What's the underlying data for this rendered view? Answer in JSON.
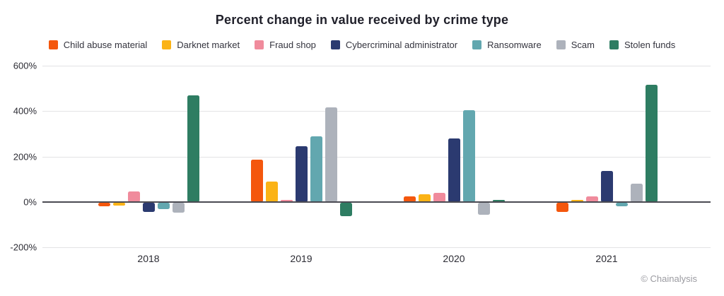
{
  "footer": "© Chainalysis",
  "chart_data": {
    "type": "bar",
    "title": "Percent change in value received by crime type",
    "categories": [
      "2018",
      "2019",
      "2020",
      "2021"
    ],
    "series": [
      {
        "name": "Child abuse material",
        "color": "#F4570D",
        "values": [
          -15,
          185,
          25,
          -40
        ]
      },
      {
        "name": "Darknet market",
        "color": "#FBB316",
        "values": [
          -12,
          88,
          35,
          10
        ]
      },
      {
        "name": "Fraud shop",
        "color": "#F08B9C",
        "values": [
          45,
          8,
          40,
          25
        ]
      },
      {
        "name": "Cybercriminal administrator",
        "color": "#2B3A70",
        "values": [
          -40,
          245,
          280,
          135
        ]
      },
      {
        "name": "Ransomware",
        "color": "#62A7AF",
        "values": [
          -30,
          290,
          405,
          -15
        ]
      },
      {
        "name": "Scam",
        "color": "#ADB2BB",
        "values": [
          -45,
          415,
          -55,
          80
        ]
      },
      {
        "name": "Stolen funds",
        "color": "#2E7D62",
        "values": [
          470,
          -60,
          5,
          515
        ]
      }
    ],
    "ylabel": "",
    "xlabel": "",
    "yticks": [
      600,
      400,
      200,
      0,
      -200
    ],
    "ytick_suffix": "%",
    "ylim": [
      -200,
      600
    ],
    "grid": true,
    "legend_position": "top"
  }
}
